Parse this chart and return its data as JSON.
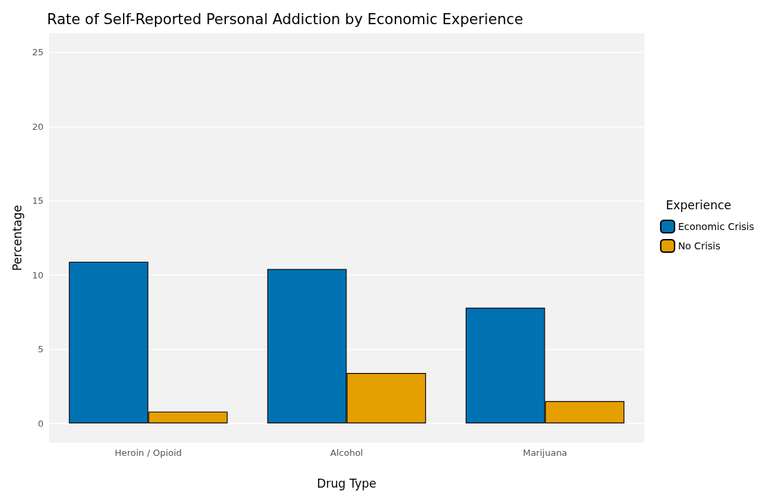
{
  "chart_data": {
    "type": "bar",
    "title": "Rate of Self-Reported Personal Addiction by Economic Experience",
    "xlabel": "Drug Type",
    "ylabel": "Percentage",
    "legend_title": "Experience",
    "categories": [
      "Heroin / Opioid",
      "Alcohol",
      "Marijuana"
    ],
    "series": [
      {
        "name": "Economic Crisis",
        "color": "#0072b2",
        "values": [
          10.9,
          10.4,
          7.8
        ]
      },
      {
        "name": "No Crisis",
        "color": "#e69f00",
        "values": [
          0.8,
          3.4,
          1.5
        ]
      }
    ],
    "ylim": [
      -1.3,
      26.3
    ],
    "yticks": [
      0,
      5,
      10,
      15,
      20,
      25
    ],
    "grid": "y",
    "legend": "right"
  }
}
